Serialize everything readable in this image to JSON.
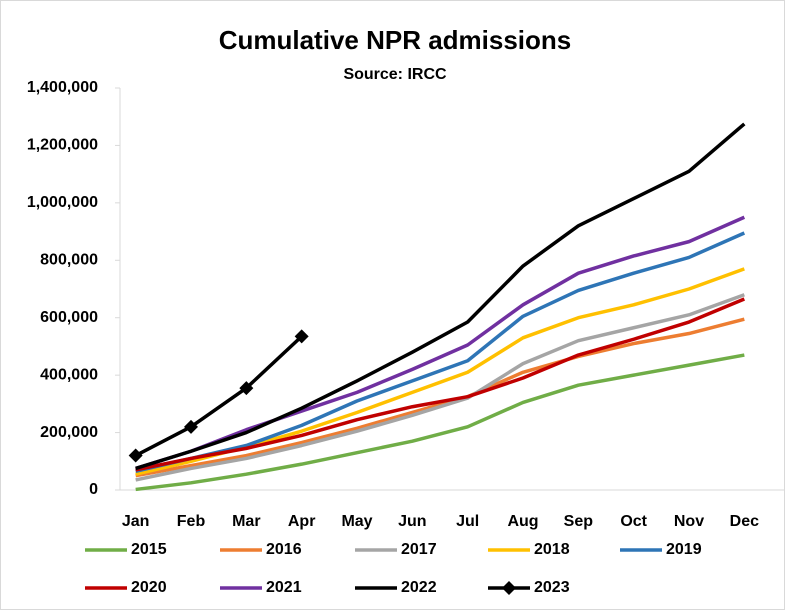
{
  "chart_data": {
    "type": "line",
    "title": "Cumulative NPR admissions",
    "subtitle": "Source: IRCC",
    "categories": [
      "Jan",
      "Feb",
      "Mar",
      "Apr",
      "May",
      "Jun",
      "Jul",
      "Aug",
      "Sep",
      "Oct",
      "Nov",
      "Dec"
    ],
    "ylim": [
      0,
      1400000
    ],
    "yticks": [
      0,
      {
        "value": 200000,
        "label": "200,000"
      },
      {
        "value": 400000,
        "label": "400,000"
      },
      {
        "value": 600000,
        "label": "600,000"
      },
      {
        "value": 800000,
        "label": "800,000"
      },
      {
        "value": 1000000,
        "label": "1,000,000"
      },
      {
        "value": 1200000,
        "label": "1,200,000"
      },
      {
        "value": 1400000,
        "label": "1,400,000"
      }
    ],
    "grid": false,
    "legend": "bottom",
    "series": [
      {
        "name": "2015",
        "color": "#70ad47",
        "values": [
          2000,
          25000,
          55000,
          90000,
          130000,
          170000,
          220000,
          305000,
          365000,
          400000,
          435000,
          470000
        ]
      },
      {
        "name": "2016",
        "color": "#ed7d31",
        "values": [
          50000,
          85000,
          120000,
          165000,
          215000,
          270000,
          325000,
          410000,
          465000,
          510000,
          545000,
          595000
        ]
      },
      {
        "name": "2017",
        "color": "#a5a5a5",
        "values": [
          35000,
          75000,
          110000,
          155000,
          205000,
          260000,
          320000,
          440000,
          520000,
          565000,
          610000,
          680000
        ]
      },
      {
        "name": "2018",
        "color": "#ffc000",
        "values": [
          55000,
          100000,
          150000,
          205000,
          270000,
          340000,
          410000,
          530000,
          600000,
          645000,
          700000,
          770000
        ]
      },
      {
        "name": "2019",
        "color": "#2e75b6",
        "values": [
          65000,
          110000,
          155000,
          225000,
          310000,
          380000,
          450000,
          605000,
          695000,
          755000,
          810000,
          895000
        ]
      },
      {
        "name": "2020",
        "color": "#c00000",
        "values": [
          70000,
          110000,
          145000,
          190000,
          245000,
          290000,
          325000,
          390000,
          470000,
          525000,
          585000,
          665000
        ]
      },
      {
        "name": "2021",
        "color": "#7030a0",
        "values": [
          75000,
          135000,
          210000,
          275000,
          340000,
          420000,
          505000,
          645000,
          755000,
          815000,
          865000,
          950000
        ]
      },
      {
        "name": "2022",
        "color": "#000000",
        "values": [
          75000,
          135000,
          200000,
          285000,
          380000,
          480000,
          585000,
          780000,
          920000,
          1015000,
          1110000,
          1275000
        ]
      },
      {
        "name": "2023",
        "color": "#000000",
        "marker": "diamond",
        "values": [
          120000,
          220000,
          355000,
          535000,
          null,
          null,
          null,
          null,
          null,
          null,
          null,
          null
        ]
      }
    ]
  }
}
